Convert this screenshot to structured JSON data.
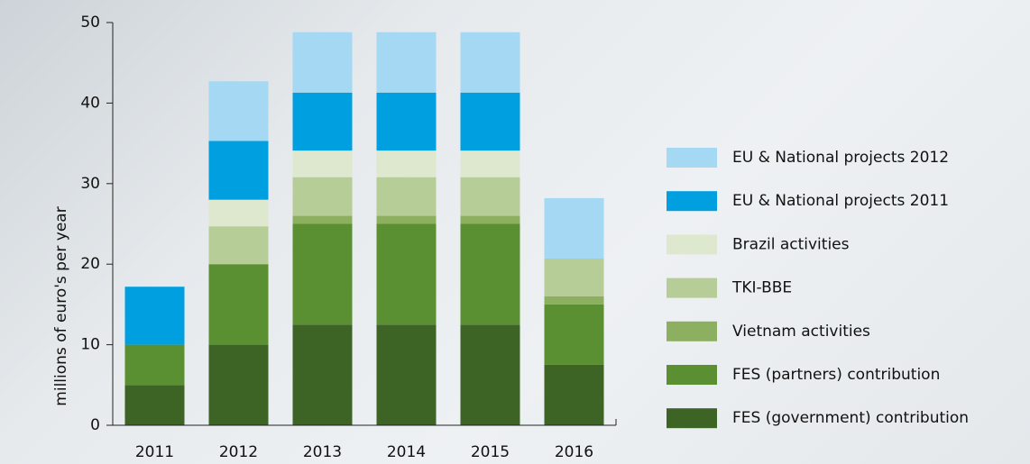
{
  "chart_data": {
    "type": "stacked_bar",
    "y_label": "millions of euro's per year",
    "categories": [
      "2011",
      "2012",
      "2013",
      "2014",
      "2015",
      "2016"
    ],
    "series": [
      {
        "name": "FES (government) contribution",
        "color": "#3d6325",
        "values": [
          5,
          10,
          12.5,
          12.5,
          12.5,
          7.5
        ]
      },
      {
        "name": "FES (partners) contribution",
        "color": "#5a9032",
        "values": [
          5,
          10,
          12.5,
          12.5,
          12.5,
          7.5
        ]
      },
      {
        "name": "Vietnam activities",
        "color": "#8cb060",
        "values": [
          0,
          0,
          1,
          1,
          1,
          1
        ]
      },
      {
        "name": "TKI-BBE",
        "color": "#b7cd97",
        "values": [
          0,
          4.7,
          4.8,
          4.8,
          4.8,
          4.7
        ]
      },
      {
        "name": "Brazil activities",
        "color": "#dde8cf",
        "values": [
          0,
          3.3,
          3.3,
          3.3,
          3.3,
          0
        ]
      },
      {
        "name": "EU & National projects 2011",
        "color": "#009fe0",
        "values": [
          7.2,
          7.3,
          7.2,
          7.2,
          7.2,
          0
        ]
      },
      {
        "name": "EU & National projects 2012",
        "color": "#a4d8f3",
        "values": [
          0,
          7.4,
          7.5,
          7.5,
          7.5,
          7.5
        ]
      }
    ],
    "ylim": [
      0,
      50
    ],
    "yticks": [
      0,
      10,
      20,
      30,
      40,
      50
    ]
  }
}
